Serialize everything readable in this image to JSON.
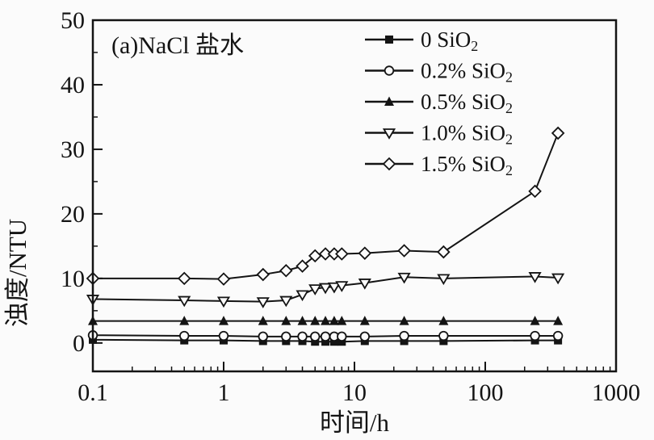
{
  "figure": {
    "annotation": "(a)NaCl 盐水",
    "xlabel": "时间/h",
    "ylabel": "浊度/NTU"
  },
  "colors": {
    "ink": "#141414",
    "background": "#fbfbfb"
  },
  "chart_data": {
    "type": "line",
    "title": "(a)NaCl 盐水",
    "xlabel": "时间/h",
    "ylabel": "浊度/NTU",
    "x_scale": "log",
    "xlim": [
      0.1,
      1000
    ],
    "ylim": [
      -4.4,
      50
    ],
    "x_ticks": [
      0.1,
      1,
      10,
      100,
      1000
    ],
    "x_tick_labels": [
      "0.1",
      "1",
      "10",
      "100",
      "1000"
    ],
    "y_ticks": [
      0,
      10,
      20,
      30,
      40,
      50
    ],
    "y_tick_labels": [
      "0",
      "10",
      "20",
      "30",
      "40",
      "50"
    ],
    "y_minor_ticks": [
      5,
      15,
      25,
      35,
      45
    ],
    "grid": false,
    "legend_position": "top-center-inside",
    "x": [
      0.1,
      0.5,
      1,
      2,
      3,
      4,
      5,
      6,
      7,
      8,
      12,
      24,
      48,
      240,
      360
    ],
    "series": [
      {
        "name": "0 SiO2",
        "label": {
          "text": "0 SiO",
          "sub": "2"
        },
        "marker": "square-filled",
        "values": [
          0.5,
          0.4,
          0.4,
          0.3,
          0.3,
          0.3,
          0.2,
          0.2,
          0.2,
          0.2,
          0.3,
          0.3,
          0.3,
          0.4,
          0.4
        ]
      },
      {
        "name": "0.2% SiO2",
        "label": {
          "text": "0.2% SiO",
          "sub": "2"
        },
        "marker": "circle-open",
        "values": [
          1.2,
          1.1,
          1.1,
          1.0,
          1.0,
          1.0,
          1.0,
          1.0,
          1.0,
          1.0,
          1.0,
          1.1,
          1.1,
          1.1,
          1.1
        ]
      },
      {
        "name": "0.5% SiO2",
        "label": {
          "text": "0.5% SiO",
          "sub": "2"
        },
        "marker": "triangle-up-filled",
        "values": [
          3.4,
          3.4,
          3.4,
          3.4,
          3.4,
          3.4,
          3.4,
          3.4,
          3.4,
          3.4,
          3.4,
          3.4,
          3.4,
          3.4,
          3.4
        ]
      },
      {
        "name": "1.0% SiO2",
        "label": {
          "text": "1.0% SiO",
          "sub": "2"
        },
        "marker": "triangle-down-open",
        "values": [
          6.8,
          6.6,
          6.5,
          6.4,
          6.6,
          7.5,
          8.4,
          8.6,
          8.7,
          8.9,
          9.3,
          10.2,
          10.0,
          10.3,
          10.1
        ]
      },
      {
        "name": "1.5% SiO2",
        "label": {
          "text": "1.5% SiO",
          "sub": "2"
        },
        "marker": "diamond-open",
        "values": [
          10.0,
          10.0,
          9.9,
          10.6,
          11.2,
          11.9,
          13.5,
          13.8,
          13.8,
          13.8,
          13.9,
          14.3,
          14.1,
          23.5,
          32.5
        ]
      }
    ]
  }
}
